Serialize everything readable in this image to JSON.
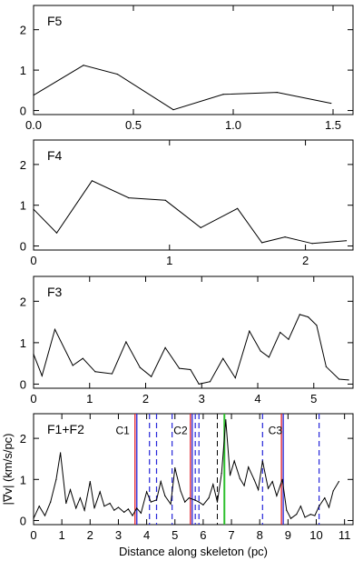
{
  "chart_data": [
    {
      "type": "line",
      "panel_label": "F5",
      "xlim": [
        0,
        1.6
      ],
      "ylim": [
        -0.1,
        2.6
      ],
      "x_ticks": [
        0.0,
        0.5,
        1.0,
        1.5
      ],
      "x_tick_labels": [
        "0.0",
        "0.5",
        "1.0",
        "1.5"
      ],
      "y_ticks": [
        0,
        1,
        2
      ],
      "y_tick_labels": [
        "0",
        "1",
        "2"
      ],
      "x": [
        0.0,
        0.25,
        0.42,
        0.7,
        0.95,
        1.22,
        1.49
      ],
      "y": [
        0.38,
        1.12,
        0.9,
        0.02,
        0.4,
        0.45,
        0.18
      ]
    },
    {
      "type": "line",
      "panel_label": "F4",
      "xlim": [
        0,
        2.35
      ],
      "ylim": [
        -0.1,
        2.6
      ],
      "x_ticks": [
        0,
        1,
        2
      ],
      "x_tick_labels": [
        "0",
        "1",
        "2"
      ],
      "y_ticks": [
        0,
        1,
        2
      ],
      "y_tick_labels": [
        "0",
        "1",
        "2"
      ],
      "x": [
        0.0,
        0.17,
        0.43,
        0.7,
        0.97,
        1.23,
        1.5,
        1.68,
        1.85,
        2.05,
        2.3
      ],
      "y": [
        0.9,
        0.32,
        1.6,
        1.18,
        1.12,
        0.45,
        0.92,
        0.08,
        0.22,
        0.06,
        0.13
      ]
    },
    {
      "type": "line",
      "panel_label": "F3",
      "xlim": [
        0,
        5.7
      ],
      "ylim": [
        -0.1,
        2.6
      ],
      "x_ticks": [
        0,
        1,
        2,
        3,
        4,
        5
      ],
      "x_tick_labels": [
        "0",
        "1",
        "2",
        "3",
        "4",
        "5"
      ],
      "y_ticks": [
        0,
        1,
        2
      ],
      "y_tick_labels": [
        "0",
        "1",
        "2"
      ],
      "x": [
        0.0,
        0.15,
        0.38,
        0.7,
        0.88,
        1.1,
        1.4,
        1.65,
        1.9,
        2.1,
        2.35,
        2.6,
        2.8,
        2.95,
        3.15,
        3.38,
        3.6,
        3.85,
        4.05,
        4.2,
        4.4,
        4.55,
        4.75,
        4.9,
        5.05,
        5.22,
        5.45,
        5.62
      ],
      "y": [
        0.72,
        0.2,
        1.32,
        0.45,
        0.62,
        0.3,
        0.25,
        1.02,
        0.4,
        0.18,
        0.88,
        0.38,
        0.35,
        0.0,
        0.06,
        0.62,
        0.15,
        1.28,
        0.8,
        0.65,
        1.25,
        1.08,
        1.68,
        1.62,
        1.42,
        0.42,
        0.12,
        0.1
      ]
    },
    {
      "type": "line",
      "panel_label": "F1+F2",
      "xlim": [
        0,
        11.3
      ],
      "ylim": [
        -0.1,
        2.6
      ],
      "x_ticks": [
        0,
        1,
        2,
        3,
        4,
        5,
        6,
        7,
        8,
        9,
        10,
        11
      ],
      "x_tick_labels": [
        "0",
        "1",
        "2",
        "3",
        "4",
        "5",
        "6",
        "7",
        "8",
        "9",
        "10",
        "11"
      ],
      "y_ticks": [
        0,
        1,
        2
      ],
      "y_tick_labels": [
        "0",
        "1",
        "2"
      ],
      "ylabel": "|∇v| (km/s/pc)",
      "xlabel": "Distance along skeleton (pc)",
      "x": [
        0.0,
        0.2,
        0.4,
        0.6,
        0.8,
        0.95,
        1.15,
        1.3,
        1.5,
        1.65,
        1.8,
        2.0,
        2.15,
        2.35,
        2.5,
        2.7,
        2.85,
        3.0,
        3.2,
        3.35,
        3.5,
        3.65,
        3.8,
        4.0,
        4.15,
        4.35,
        4.5,
        4.65,
        4.85,
        5.0,
        5.2,
        5.35,
        5.5,
        5.7,
        5.85,
        6.0,
        6.2,
        6.35,
        6.5,
        6.65,
        6.8,
        6.95,
        7.1,
        7.3,
        7.45,
        7.6,
        7.8,
        7.95,
        8.1,
        8.3,
        8.45,
        8.6,
        8.8,
        8.95,
        9.1,
        9.3,
        9.45,
        9.6,
        9.8,
        9.95,
        10.1,
        10.3,
        10.45,
        10.6,
        10.8
      ],
      "y": [
        0.05,
        0.35,
        0.12,
        0.45,
        1.0,
        1.65,
        0.42,
        0.75,
        0.3,
        0.55,
        0.25,
        0.95,
        0.3,
        0.7,
        0.35,
        0.42,
        0.25,
        0.32,
        0.2,
        0.28,
        0.12,
        0.3,
        0.18,
        0.7,
        0.45,
        0.5,
        0.95,
        0.6,
        0.4,
        1.28,
        0.72,
        0.45,
        0.55,
        0.5,
        0.45,
        0.38,
        0.55,
        0.88,
        0.45,
        1.15,
        2.45,
        1.1,
        1.45,
        1.02,
        0.85,
        1.3,
        1.0,
        0.75,
        1.45,
        0.78,
        0.95,
        0.6,
        1.0,
        0.25,
        0.05,
        0.15,
        0.35,
        0.08,
        0.15,
        0.12,
        0.35,
        0.55,
        0.32,
        0.72,
        0.95
      ]
    }
  ],
  "annotations": {
    "labels": [
      {
        "text": "C1",
        "x": 3.15,
        "y": 2.1
      },
      {
        "text": "C2",
        "x": 5.2,
        "y": 2.1
      },
      {
        "text": "C3",
        "x": 8.55,
        "y": 2.1
      }
    ],
    "red_lines": [
      3.62,
      5.58,
      8.8
    ],
    "blue_solid_lines": [
      3.62,
      5.58,
      8.8
    ],
    "blue_dashed_lines": [
      4.1,
      4.35,
      4.9,
      5.72,
      5.85,
      8.1,
      10.1
    ],
    "green_line": 6.75,
    "colors": {
      "red": "#e0202a",
      "blue": "#2626d9",
      "green": "#2ec02e",
      "black_dashed": "#000000"
    }
  }
}
